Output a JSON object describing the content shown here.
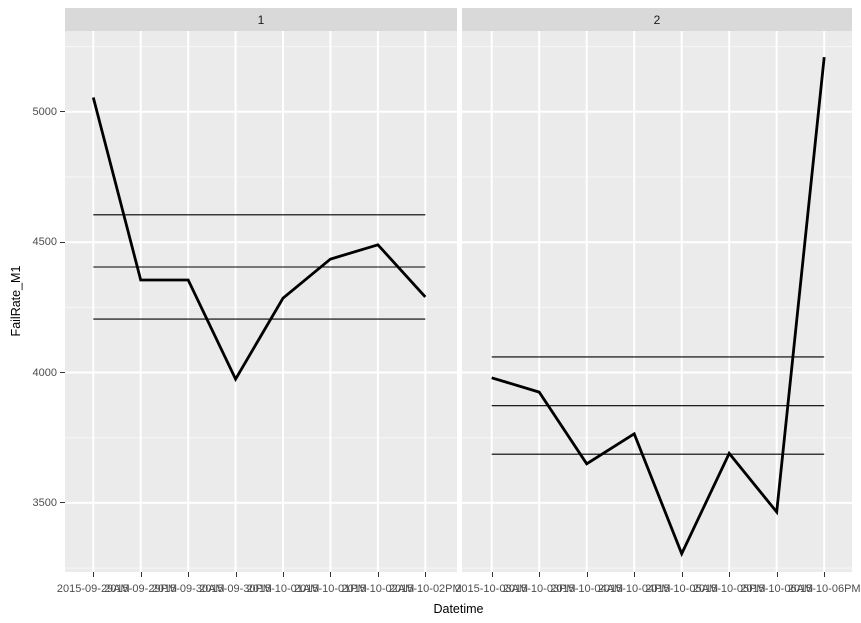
{
  "figure": {
    "background": "#ffffff",
    "panel_bg": "#ebebeb",
    "strip_bg": "#d9d9d9",
    "grid_color": "#ffffff",
    "ref_line_color": "#000000",
    "series_color": "#000000",
    "axis_text_color": "#4d4d4d"
  },
  "chart_data": {
    "type": "line",
    "faceted": true,
    "facet_labels": [
      "1",
      "2"
    ],
    "title": "",
    "xlabel": "Datetime",
    "ylabel": "FailRate_M1",
    "ylim": [
      3235,
      5310
    ],
    "y_major_ticks": [
      3500,
      4000,
      4500,
      5000
    ],
    "y_minor_ticks": [
      3250,
      3750,
      4250,
      4750,
      5250
    ],
    "grid": true,
    "legend": "none",
    "panels": [
      {
        "facet_label": "1",
        "x": [
          "2015-09-29AM",
          "2015-09-29PM",
          "2015-09-30AM",
          "2015-09-30PM",
          "2015-10-01AM",
          "2015-10-01PM",
          "2015-10-02AM",
          "2015-10-02PM"
        ],
        "values": [
          5055,
          4355,
          4355,
          3975,
          4285,
          4435,
          4490,
          4290
        ],
        "ref_lines": [
          4605,
          4405,
          4205
        ]
      },
      {
        "facet_label": "2",
        "x": [
          "2015-10-03AM",
          "2015-10-03PM",
          "2015-10-04AM",
          "2015-10-04PM",
          "2015-10-05AM",
          "2015-10-05PM",
          "2015-10-06AM",
          "2015-10-06PM"
        ],
        "values": [
          3980,
          3925,
          3650,
          3765,
          3305,
          3690,
          3465,
          5210
        ],
        "ref_lines": [
          4060,
          3873,
          3687
        ]
      }
    ]
  }
}
